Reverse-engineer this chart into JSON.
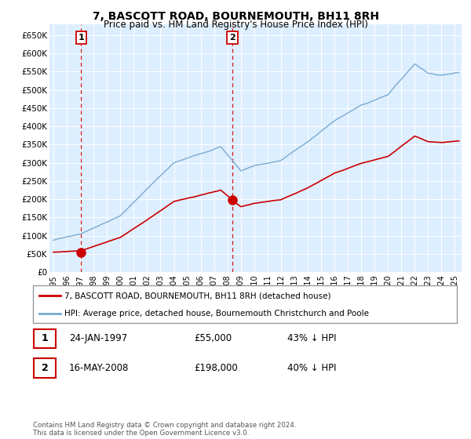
{
  "title": "7, BASCOTT ROAD, BOURNEMOUTH, BH11 8RH",
  "subtitle": "Price paid vs. HM Land Registry's House Price Index (HPI)",
  "ylim": [
    0,
    680000
  ],
  "yticks": [
    0,
    50000,
    100000,
    150000,
    200000,
    250000,
    300000,
    350000,
    400000,
    450000,
    500000,
    550000,
    600000,
    650000
  ],
  "xlim_start": 1994.7,
  "xlim_end": 2025.5,
  "bg_color": "#ddeeff",
  "sale1_x": 1997.07,
  "sale1_y": 55000,
  "sale1_label": "1",
  "sale1_date": "24-JAN-1997",
  "sale1_price": "£55,000",
  "sale1_hpi": "43% ↓ HPI",
  "sale2_x": 2008.37,
  "sale2_y": 198000,
  "sale2_label": "2",
  "sale2_date": "16-MAY-2008",
  "sale2_price": "£198,000",
  "sale2_hpi": "40% ↓ HPI",
  "line_color_hpi": "#7aaad0",
  "line_color_property": "#cc0000",
  "legend_property": "7, BASCOTT ROAD, BOURNEMOUTH, BH11 8RH (detached house)",
  "legend_hpi": "HPI: Average price, detached house, Bournemouth Christchurch and Poole",
  "footnote": "Contains HM Land Registry data © Crown copyright and database right 2024.\nThis data is licensed under the Open Government Licence v3.0."
}
